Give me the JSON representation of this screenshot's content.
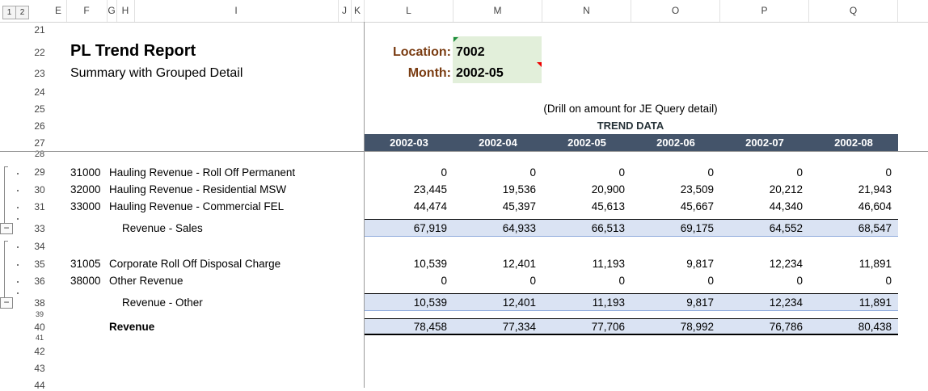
{
  "outline_levels": [
    "1",
    "2"
  ],
  "outline_collapse_glyph": "−",
  "columns": [
    "E",
    "F",
    "G",
    "H",
    "I",
    "J",
    "K",
    "L",
    "M",
    "N",
    "O",
    "P",
    "Q"
  ],
  "row_numbers": [
    "21",
    "22",
    "23",
    "24",
    "25",
    "26",
    "27",
    "28",
    "29",
    "30",
    "31",
    "33",
    "34",
    "35",
    "36",
    "38",
    "39",
    "40",
    "41",
    "42",
    "43",
    "44"
  ],
  "report": {
    "title": "PL Trend Report",
    "subtitle": "Summary with Grouped Detail"
  },
  "params": {
    "location_label": "Location:",
    "location_value": "7002",
    "month_label": "Month:",
    "month_value": "2002-05"
  },
  "drill_note": "(Drill on amount for JE Query detail)",
  "trend_label": "TREND DATA",
  "months": [
    "2002-03",
    "2002-04",
    "2002-05",
    "2002-06",
    "2002-07",
    "2002-08"
  ],
  "lines": [
    {
      "acct": "31000",
      "name": "Hauling Revenue - Roll Off Permanent",
      "values": [
        "0",
        "0",
        "0",
        "0",
        "0",
        "0"
      ]
    },
    {
      "acct": "32000",
      "name": "Hauling Revenue - Residential MSW",
      "values": [
        "23,445",
        "19,536",
        "20,900",
        "23,509",
        "20,212",
        "21,943"
      ]
    },
    {
      "acct": "33000",
      "name": "Hauling Revenue - Commercial FEL",
      "values": [
        "44,474",
        "45,397",
        "45,613",
        "45,667",
        "44,340",
        "46,604"
      ]
    },
    {
      "acct": "",
      "name": "Revenue - Sales",
      "values": [
        "67,919",
        "64,933",
        "66,513",
        "69,175",
        "64,552",
        "68,547"
      ]
    },
    {
      "acct": "31005",
      "name": "Corporate Roll Off Disposal Charge",
      "values": [
        "10,539",
        "12,401",
        "11,193",
        "9,817",
        "12,234",
        "11,891"
      ]
    },
    {
      "acct": "38000",
      "name": "Other Revenue",
      "values": [
        "0",
        "0",
        "0",
        "0",
        "0",
        "0"
      ]
    },
    {
      "acct": "",
      "name": "Revenue - Other",
      "values": [
        "10,539",
        "12,401",
        "11,193",
        "9,817",
        "12,234",
        "11,891"
      ]
    },
    {
      "acct": "",
      "name": "Revenue",
      "values": [
        "78,458",
        "77,334",
        "77,706",
        "78,992",
        "76,786",
        "80,438"
      ]
    }
  ]
}
